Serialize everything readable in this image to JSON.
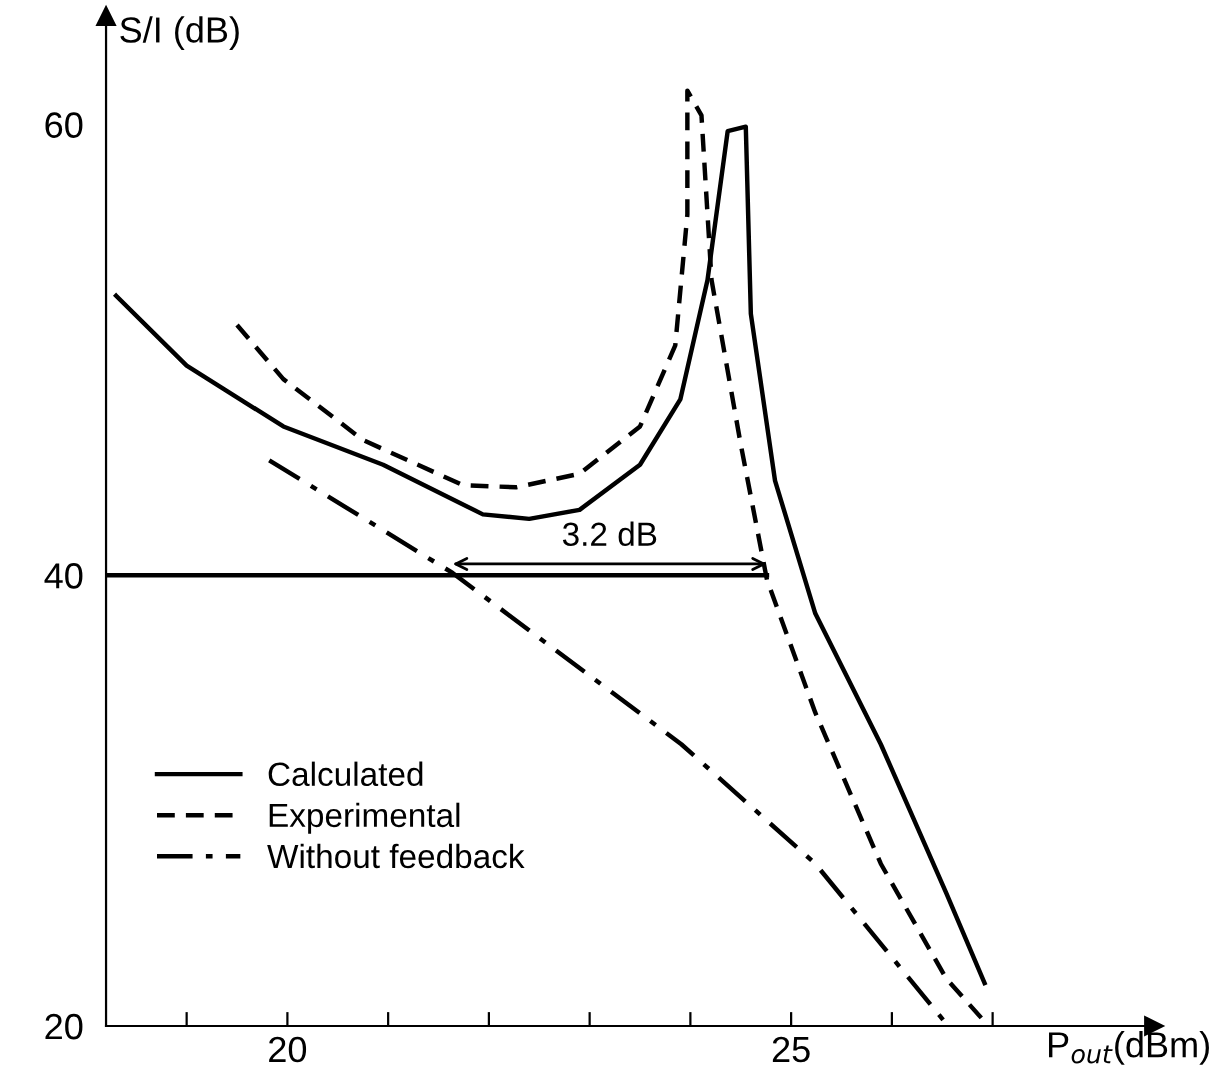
{
  "chart_data": {
    "type": "line",
    "xlabel": "P$_{out}$(dBm)",
    "ylabel": "S/I (dB)",
    "xlim": [
      18.2,
      28.6
    ],
    "ylim": [
      20,
      64.8
    ],
    "xticks": [
      {
        "value": 19,
        "label": null
      },
      20,
      {
        "value": 21,
        "label": null
      },
      {
        "value": 22,
        "label": null
      },
      {
        "value": 23,
        "label": null
      },
      {
        "value": 24,
        "label": null
      },
      25,
      {
        "value": 26,
        "label": null
      },
      {
        "value": 27,
        "label": null
      }
    ],
    "yticks": [
      20,
      40,
      60
    ],
    "grid": false,
    "legend": "lower left",
    "marker": "none",
    "annotations": [
      "3.2 dB"
    ],
    "series": [
      {
        "name": "Calculated",
        "color": "#000000",
        "line_style": "solid",
        "x": [
          18.3,
          19.0,
          19.96,
          20.95,
          21.94,
          22.4,
          22.9,
          23.5,
          23.9,
          24.17,
          24.37,
          24.55,
          24.6,
          24.84,
          25.24,
          25.89,
          26.54,
          26.92
        ],
        "values": [
          52.4,
          49.3,
          46.6,
          44.9,
          42.7,
          42.5,
          42.9,
          44.9,
          47.8,
          53.1,
          59.7,
          59.9,
          51.6,
          44.2,
          38.3,
          32.5,
          25.9,
          21.9
        ]
      },
      {
        "name": "Experimental",
        "color": "#000000",
        "line_style": "dashed",
        "x": [
          19.5,
          19.96,
          20.75,
          21.74,
          22.27,
          22.9,
          23.5,
          23.85,
          23.97,
          23.97,
          24.11,
          24.21,
          24.5,
          24.76,
          25.24,
          25.89,
          26.54,
          26.94
        ],
        "values": [
          51.1,
          48.7,
          46.0,
          44.0,
          43.9,
          44.5,
          46.6,
          50.2,
          56.0,
          61.5,
          60.4,
          53.1,
          45.8,
          39.8,
          33.9,
          27.2,
          22.1,
          20.1
        ]
      },
      {
        "name": "Without feedback",
        "color": "#000000",
        "line_style": "dashdot",
        "x": [
          19.82,
          21.64,
          23.91,
          25.24,
          26.54
        ],
        "values": [
          45.1,
          40.1,
          32.5,
          27.2,
          20.1
        ]
      },
      {
        "color": "#000000",
        "line_style": "solid",
        "x": [
          18.2,
          21.64,
          24.76
        ],
        "values": [
          40,
          40,
          40
        ]
      }
    ]
  }
}
